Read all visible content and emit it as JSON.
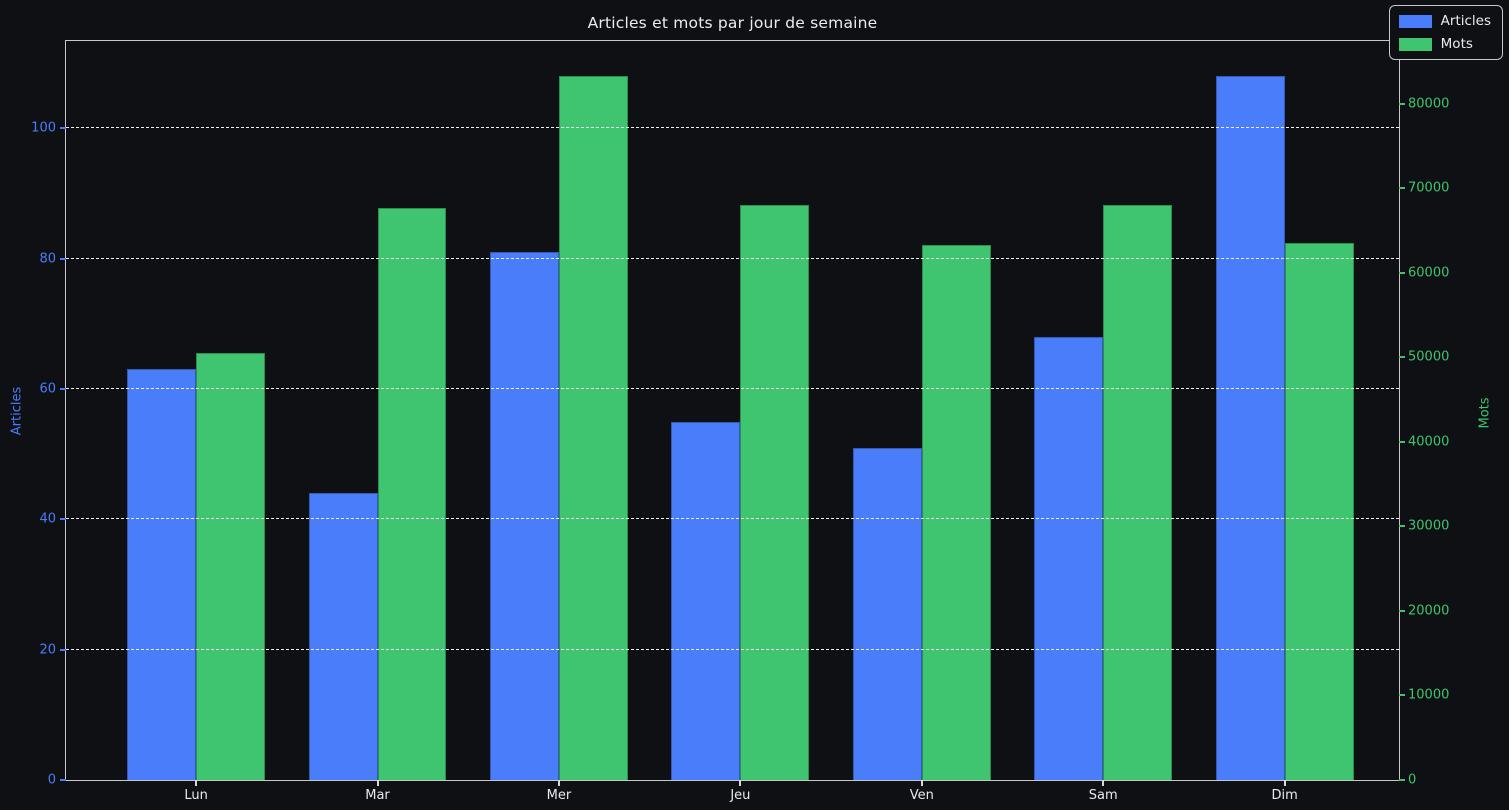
{
  "chart_data": {
    "type": "bar",
    "title": "Articles et mots par jour de semaine",
    "categories": [
      "Lun",
      "Mar",
      "Mer",
      "Jeu",
      "Ven",
      "Sam",
      "Dim"
    ],
    "series": [
      {
        "name": "Articles",
        "axis": "left",
        "color": "#4a7dfa",
        "edge_color": "rgba(15,25,45,0.35)",
        "values": [
          63,
          44,
          81,
          55,
          51,
          68,
          108
        ]
      },
      {
        "name": "Mots",
        "axis": "right",
        "color": "#3fc46f",
        "edge_color": "rgba(10,40,25,0.35)",
        "values": [
          50500,
          67700,
          83300,
          68000,
          63300,
          68000,
          63500
        ]
      }
    ],
    "left_axis": {
      "label": "Articles",
      "color": "#4a7dfa",
      "ticks": [
        0,
        20,
        40,
        60,
        80,
        100
      ],
      "min": 0,
      "max": 113.4
    },
    "right_axis": {
      "label": "Mots",
      "color": "#3fc46f",
      "ticks": [
        0,
        10000,
        20000,
        30000,
        40000,
        50000,
        60000,
        70000,
        80000
      ],
      "min": 0,
      "max": 87400
    },
    "grid": {
      "orientation": "horizontal",
      "style": "dashed",
      "color": "#f0f0f0",
      "follows": "left-axis-ticks",
      "drawn_above_bars": true
    },
    "legend_position": "top-right",
    "background": "#0e1014"
  }
}
